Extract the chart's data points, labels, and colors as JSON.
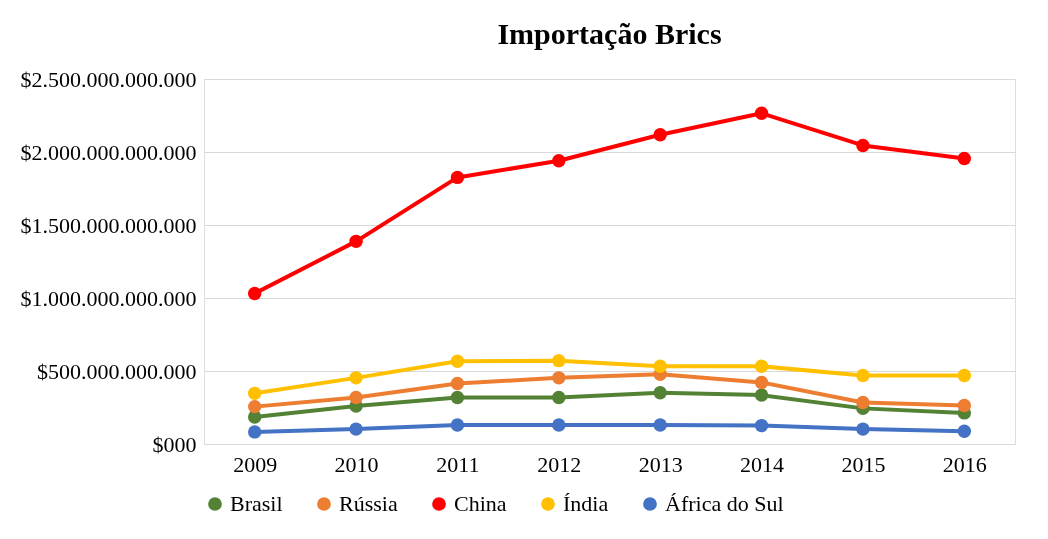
{
  "chart_data": {
    "type": "line",
    "title": "Importação Brics",
    "categories": [
      "2009",
      "2010",
      "2011",
      "2012",
      "2013",
      "2014",
      "2015",
      "2016"
    ],
    "series": [
      {
        "name": "Brasil",
        "color": "#548235",
        "values": [
          185000000000,
          260000000000,
          319000000000,
          319000000000,
          351000000000,
          335000000000,
          244000000000,
          213000000000
        ]
      },
      {
        "name": "Rússia",
        "color": "#ed7d31",
        "values": [
          256000000000,
          319000000000,
          414000000000,
          453000000000,
          477000000000,
          422000000000,
          284000000000,
          264000000000
        ]
      },
      {
        "name": "China",
        "color": "#ff0000",
        "values": [
          1031000000000,
          1388000000000,
          1826000000000,
          1940000000000,
          2118000000000,
          2265000000000,
          2045000000000,
          1956000000000
        ]
      },
      {
        "name": "Índia",
        "color": "#ffc000",
        "values": [
          347000000000,
          453000000000,
          567000000000,
          571000000000,
          532000000000,
          532000000000,
          469000000000,
          469000000000
        ]
      },
      {
        "name": "África do Sul",
        "color": "#4472c4",
        "values": [
          83000000000,
          102000000000,
          130000000000,
          130000000000,
          130000000000,
          126000000000,
          102000000000,
          87000000000
        ]
      }
    ],
    "ylim": [
      0,
      2500000000000
    ],
    "yticks": [
      {
        "value": 0,
        "label": "$000"
      },
      {
        "value": 500000000000,
        "label": "$500.000.000.000"
      },
      {
        "value": 1000000000000,
        "label": "$1.000.000.000.000"
      },
      {
        "value": 1500000000000,
        "label": "$1.500.000.000.000"
      },
      {
        "value": 2000000000000,
        "label": "$2.000.000.000.000"
      },
      {
        "value": 2500000000000,
        "label": "$2.500.000.000.000"
      }
    ],
    "grid": "y",
    "legend": "bottom",
    "marker": "circle",
    "line_style": "solid"
  }
}
